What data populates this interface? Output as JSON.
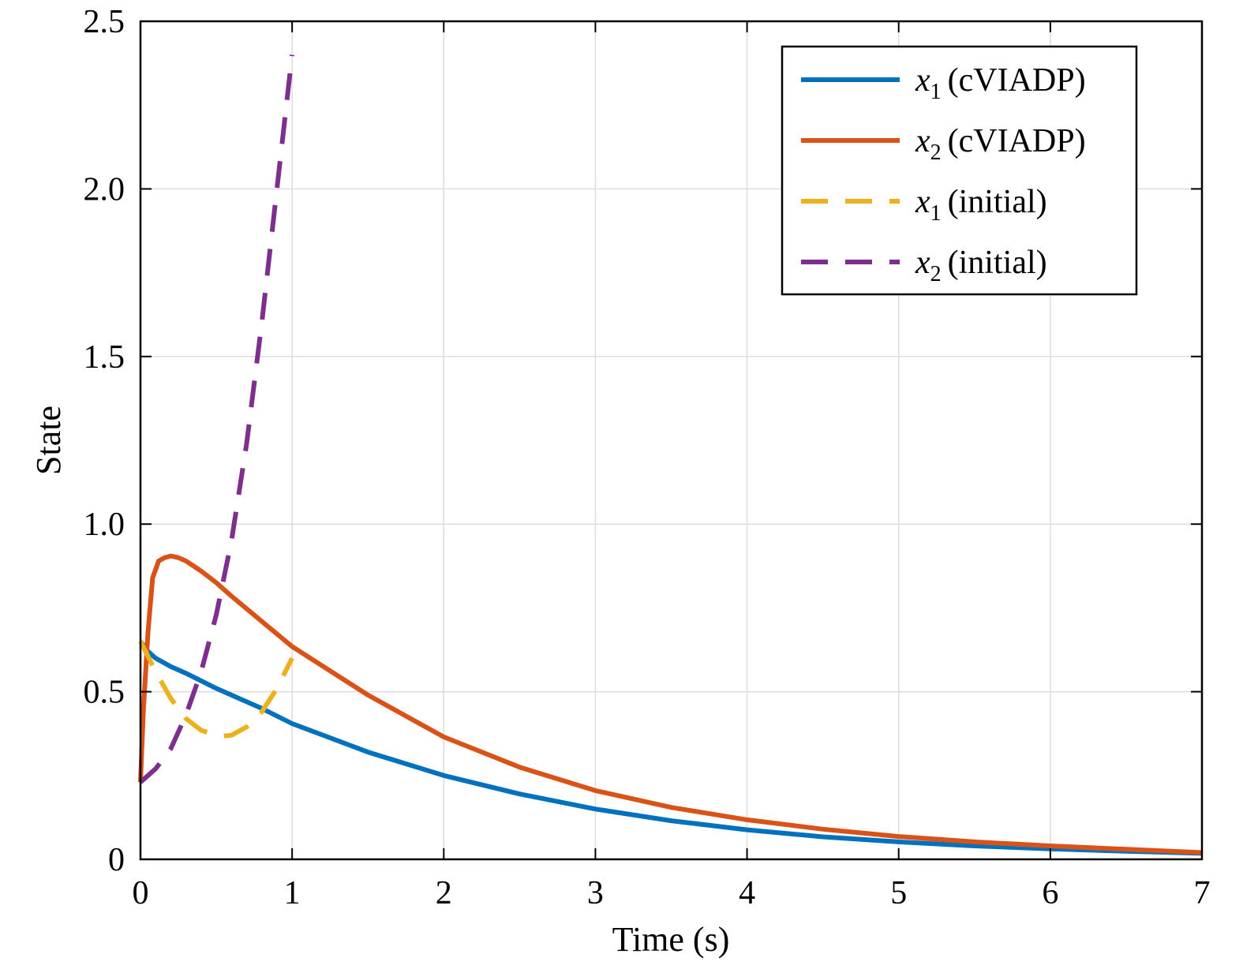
{
  "chart_data": {
    "type": "line",
    "title": "",
    "xlabel": "Time (s)",
    "ylabel": "State",
    "xlim": [
      0,
      7
    ],
    "ylim": [
      0,
      2.5
    ],
    "xticks": [
      0,
      1,
      2,
      3,
      4,
      5,
      6,
      7
    ],
    "xtick_labels": [
      "0",
      "1",
      "2",
      "3",
      "4",
      "5",
      "6",
      "7"
    ],
    "yticks": [
      0,
      0.5,
      1.0,
      1.5,
      2.0,
      2.5
    ],
    "ytick_labels": [
      "0",
      "0.5",
      "1.0",
      "1.5",
      "2.0",
      "2.5"
    ],
    "grid": true,
    "legend_position": "top-right",
    "series": [
      {
        "name": "x1 (cVIADP)",
        "legend_var": "x",
        "legend_sub": "1",
        "legend_rest": "(cVIADP)",
        "color": "#0072BD",
        "dash": "solid",
        "x": [
          0,
          0.05,
          0.1,
          0.2,
          0.3,
          0.5,
          0.8,
          1.0,
          1.5,
          2.0,
          2.5,
          3.0,
          3.5,
          4.0,
          4.5,
          5.0,
          5.5,
          6.0,
          6.5,
          7.0
        ],
        "y": [
          0.65,
          0.62,
          0.6,
          0.575,
          0.555,
          0.51,
          0.45,
          0.405,
          0.32,
          0.25,
          0.195,
          0.15,
          0.115,
          0.088,
          0.067,
          0.052,
          0.04,
          0.031,
          0.024,
          0.018
        ]
      },
      {
        "name": "x2 (cVIADP)",
        "legend_var": "x",
        "legend_sub": "2",
        "legend_rest": "(cVIADP)",
        "color": "#D95319",
        "dash": "solid",
        "x": [
          0,
          0.02,
          0.05,
          0.08,
          0.12,
          0.16,
          0.2,
          0.25,
          0.3,
          0.4,
          0.5,
          0.6,
          0.8,
          1.0,
          1.5,
          2.0,
          2.5,
          3.0,
          3.5,
          4.0,
          4.5,
          5.0,
          5.5,
          6.0,
          6.5,
          7.0
        ],
        "y": [
          0.23,
          0.45,
          0.68,
          0.84,
          0.89,
          0.9,
          0.905,
          0.9,
          0.89,
          0.86,
          0.825,
          0.785,
          0.71,
          0.635,
          0.49,
          0.365,
          0.275,
          0.205,
          0.155,
          0.118,
          0.09,
          0.068,
          0.052,
          0.04,
          0.03,
          0.02
        ]
      },
      {
        "name": "x1 (initial)",
        "legend_var": "x",
        "legend_sub": "1",
        "legend_rest": "(initial)",
        "color": "#EDB120",
        "dash": "dashed",
        "x": [
          0,
          0.1,
          0.2,
          0.3,
          0.4,
          0.5,
          0.55,
          0.6,
          0.7,
          0.8,
          0.9,
          1.0
        ],
        "y": [
          0.65,
          0.56,
          0.48,
          0.42,
          0.385,
          0.37,
          0.368,
          0.37,
          0.395,
          0.44,
          0.51,
          0.6
        ]
      },
      {
        "name": "x2 (initial)",
        "legend_var": "x",
        "legend_sub": "2",
        "legend_rest": "(initial)",
        "color": "#7E2F8E",
        "dash": "dashed",
        "x": [
          0,
          0.1,
          0.2,
          0.3,
          0.4,
          0.5,
          0.6,
          0.7,
          0.8,
          0.9,
          0.95,
          1.0
        ],
        "y": [
          0.23,
          0.27,
          0.33,
          0.43,
          0.56,
          0.73,
          0.95,
          1.24,
          1.6,
          2.0,
          2.2,
          2.4
        ]
      }
    ]
  }
}
